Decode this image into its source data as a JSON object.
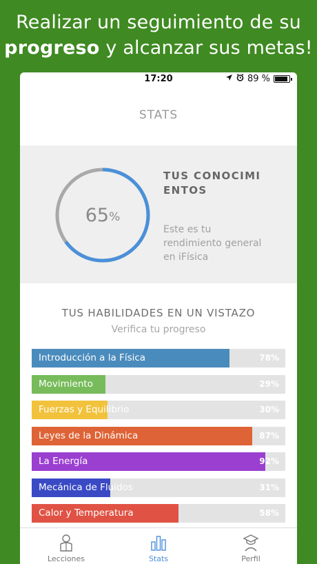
{
  "headline": {
    "line1": "Realizar un seguimiento de su",
    "bold": "progreso",
    "line2_rest": " y alcanzar sus metas!"
  },
  "status_bar": {
    "time": "17:20",
    "battery": "89 %"
  },
  "nav": {
    "title": "STATS"
  },
  "knowledge": {
    "percent_value": "65",
    "percent_sign": "%",
    "progress_fraction": 0.65,
    "title": "TUS CONOCIMIENTOS",
    "description": "Este es tu rendimiento general en iFísica",
    "ring_color": "#4a90d9",
    "ring_track_color": "#a9a9a9"
  },
  "skills": {
    "title": "TUS HABILIDADES EN UN VISTAZO",
    "subtitle": "Verifica tu progreso",
    "items": [
      {
        "label": "Introducción a la Física",
        "value": "78%",
        "fraction": 0.78,
        "color": "#4a8bbd"
      },
      {
        "label": "Movimiento",
        "value": "29%",
        "fraction": 0.29,
        "color": "#77bb5a"
      },
      {
        "label": "Fuerzas y Equilibrio",
        "value": "30%",
        "fraction": 0.3,
        "color": "#f2c23c"
      },
      {
        "label": "Leyes de la Dinámica",
        "value": "87%",
        "fraction": 0.87,
        "color": "#de6336"
      },
      {
        "label": "La Energía",
        "value": "92%",
        "fraction": 0.92,
        "color": "#9a3fd0"
      },
      {
        "label": "Mecánica de Fluidos",
        "value": "31%",
        "fraction": 0.31,
        "color": "#3a4ac4"
      },
      {
        "label": "Calor y Temperatura",
        "value": "58%",
        "fraction": 0.58,
        "color": "#e05244"
      }
    ]
  },
  "tabbar": {
    "tabs": [
      {
        "label": "Lecciones",
        "icon": "lessons-icon"
      },
      {
        "label": "Stats",
        "icon": "stats-icon",
        "active": true
      },
      {
        "label": "Perfil",
        "icon": "profile-icon"
      }
    ]
  }
}
